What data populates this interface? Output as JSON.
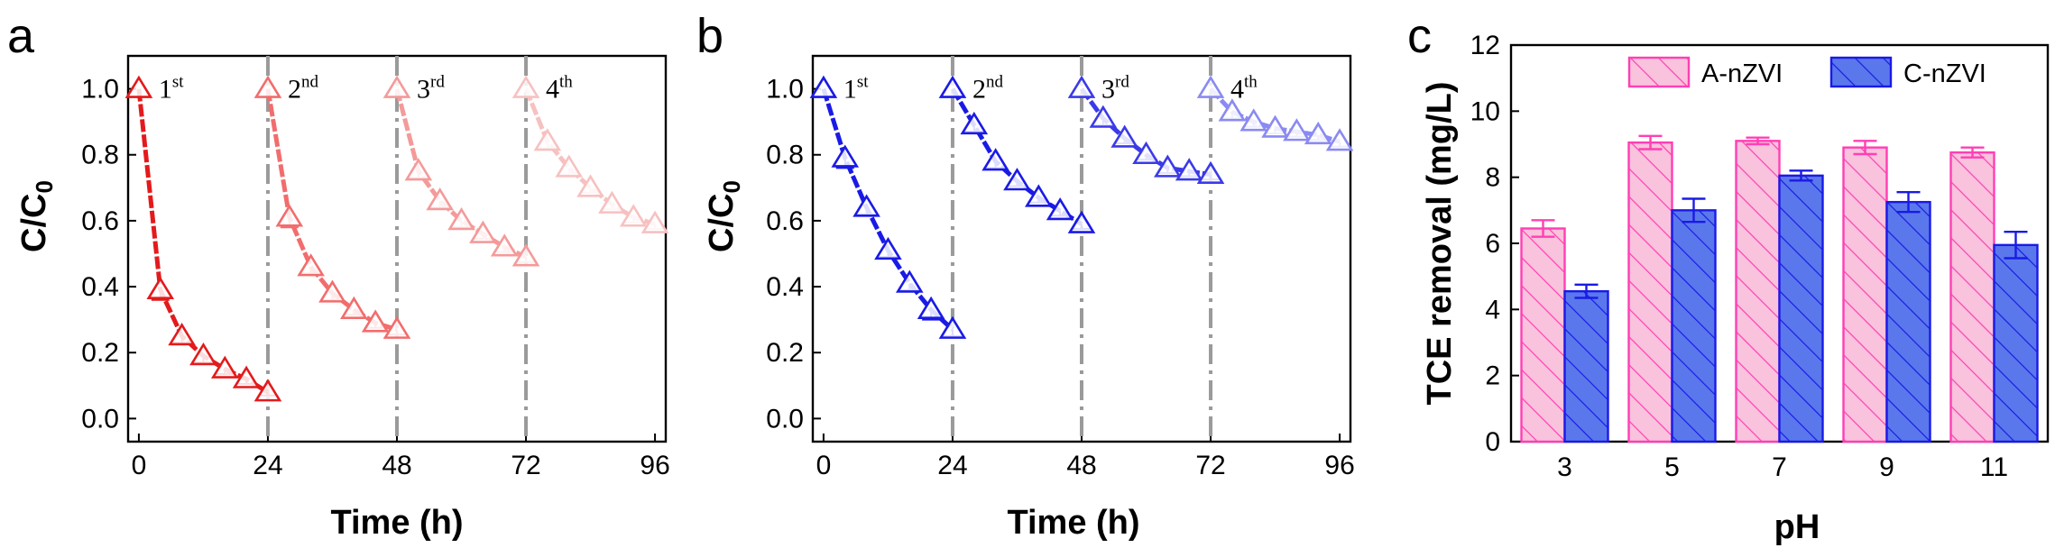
{
  "chart_data": [
    {
      "type": "line",
      "panel_label": "a",
      "xlabel": "Time (h)",
      "ylabel": "C/C₀",
      "xlim": [
        -2,
        98
      ],
      "ylim": [
        -0.07,
        1.1
      ],
      "xticks": [
        0,
        24,
        48,
        72,
        96
      ],
      "yticks": [
        0.0,
        0.2,
        0.4,
        0.6,
        0.8,
        1.0
      ],
      "grid": false,
      "legend": "none",
      "markers": "open-triangle",
      "cycle_dividers": [
        24,
        48,
        72
      ],
      "series": [
        {
          "cycle_label": "1",
          "cycle_suffix": "st",
          "color": "#e31a1c",
          "x": [
            0,
            4,
            8,
            12,
            16,
            20,
            24
          ],
          "y": [
            1.0,
            0.39,
            0.25,
            0.19,
            0.15,
            0.12,
            0.08
          ],
          "err": [
            0.0,
            0.03,
            0.02,
            0.02,
            0.015,
            0.015,
            0.01
          ]
        },
        {
          "cycle_label": "2",
          "cycle_suffix": "nd",
          "color": "#f26d6d",
          "x": [
            24,
            28,
            32,
            36,
            40,
            44,
            48
          ],
          "y": [
            1.0,
            0.61,
            0.46,
            0.38,
            0.33,
            0.29,
            0.27
          ],
          "err": [
            0.0,
            0.03,
            0.02,
            0.02,
            0.015,
            0.015,
            0.015
          ]
        },
        {
          "cycle_label": "3",
          "cycle_suffix": "rd",
          "color": "#f49a9a",
          "x": [
            48,
            52,
            56,
            60,
            64,
            68,
            72
          ],
          "y": [
            1.0,
            0.75,
            0.66,
            0.6,
            0.56,
            0.52,
            0.49
          ],
          "err": [
            0.0,
            0.02,
            0.02,
            0.02,
            0.015,
            0.015,
            0.015
          ]
        },
        {
          "cycle_label": "4",
          "cycle_suffix": "th",
          "color": "#f7c1c1",
          "x": [
            72,
            76,
            80,
            84,
            88,
            92,
            96
          ],
          "y": [
            1.0,
            0.84,
            0.76,
            0.7,
            0.65,
            0.61,
            0.59
          ],
          "err": [
            0.0,
            0.02,
            0.02,
            0.015,
            0.015,
            0.015,
            0.015
          ]
        }
      ]
    },
    {
      "type": "line",
      "panel_label": "b",
      "xlabel": "Time (h)",
      "ylabel": "C/C₀",
      "xlim": [
        -2,
        98
      ],
      "ylim": [
        -0.07,
        1.1
      ],
      "xticks": [
        0,
        24,
        48,
        72,
        96
      ],
      "yticks": [
        0.0,
        0.2,
        0.4,
        0.6,
        0.8,
        1.0
      ],
      "grid": false,
      "legend": "none",
      "markers": "open-triangle",
      "cycle_dividers": [
        24,
        48,
        72
      ],
      "series": [
        {
          "cycle_label": "1",
          "cycle_suffix": "st",
          "color": "#1a1ae6",
          "x": [
            0,
            4,
            8,
            12,
            16,
            20,
            24
          ],
          "y": [
            1.0,
            0.79,
            0.64,
            0.51,
            0.41,
            0.33,
            0.27
          ],
          "err": [
            0.0,
            0.03,
            0.02,
            0.02,
            0.02,
            0.03,
            0.02
          ]
        },
        {
          "cycle_label": "2",
          "cycle_suffix": "nd",
          "color": "#1a1ae6",
          "x": [
            24,
            28,
            32,
            36,
            40,
            44,
            48
          ],
          "y": [
            1.0,
            0.89,
            0.78,
            0.72,
            0.67,
            0.63,
            0.59
          ],
          "err": [
            0.0,
            0.02,
            0.02,
            0.015,
            0.015,
            0.015,
            0.015
          ]
        },
        {
          "cycle_label": "3",
          "cycle_suffix": "rd",
          "color": "#3a3ae8",
          "x": [
            48,
            52,
            56,
            60,
            64,
            68,
            72
          ],
          "y": [
            1.0,
            0.91,
            0.85,
            0.8,
            0.76,
            0.75,
            0.74
          ],
          "err": [
            0.0,
            0.02,
            0.015,
            0.015,
            0.015,
            0.015,
            0.015
          ]
        },
        {
          "cycle_label": "4",
          "cycle_suffix": "th",
          "color": "#8a8af2",
          "x": [
            72,
            76,
            80,
            84,
            88,
            92,
            96
          ],
          "y": [
            1.0,
            0.93,
            0.9,
            0.88,
            0.87,
            0.86,
            0.84
          ],
          "err": [
            0.0,
            0.02,
            0.015,
            0.015,
            0.015,
            0.015,
            0.015
          ]
        }
      ]
    },
    {
      "type": "bar",
      "panel_label": "c",
      "xlabel": "pH",
      "ylabel": "TCE removal (mg/L)",
      "categories": [
        "3",
        "5",
        "7",
        "9",
        "11"
      ],
      "ylim": [
        0,
        12
      ],
      "yticks": [
        0,
        2,
        4,
        6,
        8,
        10,
        12
      ],
      "grid": false,
      "legend": "top",
      "series": [
        {
          "name": "A-nZVI",
          "color": "#ff3fb4",
          "fill": "#f9c2dd",
          "values": [
            6.45,
            9.05,
            9.1,
            8.9,
            8.75
          ],
          "err": [
            0.25,
            0.2,
            0.1,
            0.2,
            0.15
          ]
        },
        {
          "name": "C-nZVI",
          "color": "#1a1ae6",
          "fill": "#5a78ec",
          "values": [
            4.55,
            7.0,
            8.05,
            7.25,
            5.95
          ],
          "err": [
            0.2,
            0.35,
            0.15,
            0.3,
            0.4
          ]
        }
      ]
    }
  ]
}
